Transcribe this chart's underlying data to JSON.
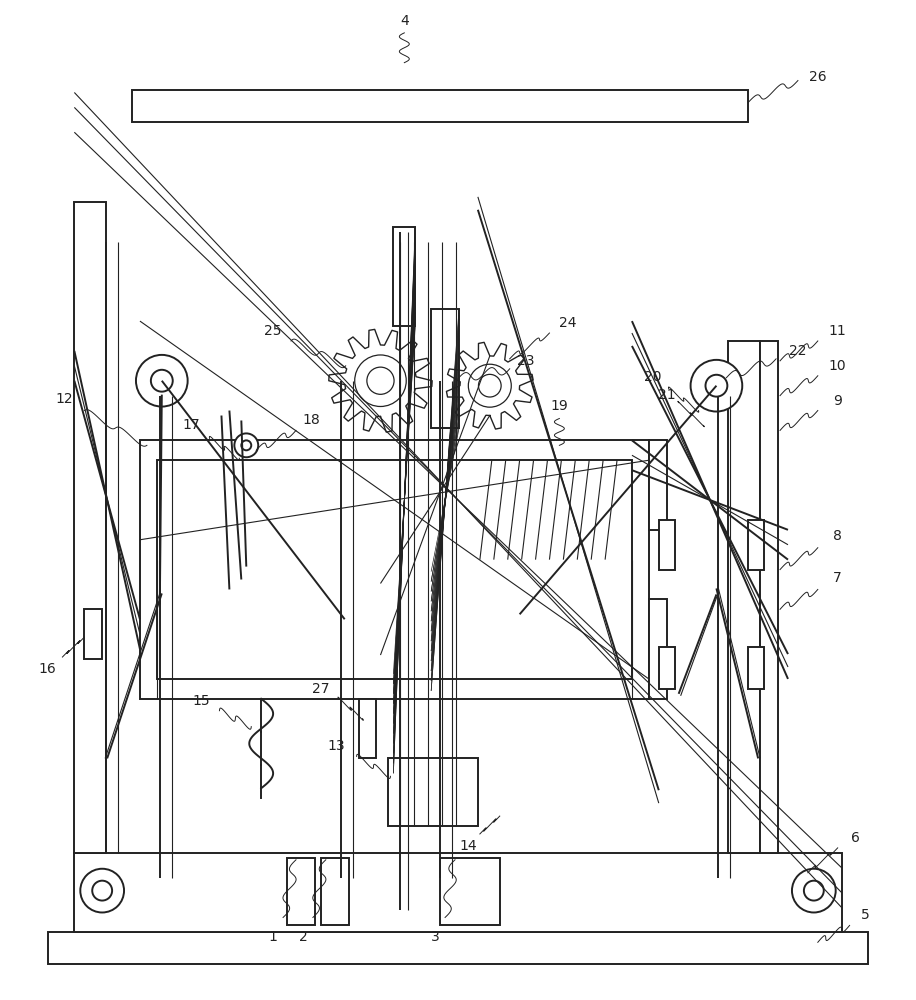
{
  "background_color": "#ffffff",
  "line_color": "#222222",
  "lw": 1.4,
  "tlw": 0.8,
  "label_fontsize": 10,
  "fig_w": 9.16,
  "fig_h": 10.0
}
